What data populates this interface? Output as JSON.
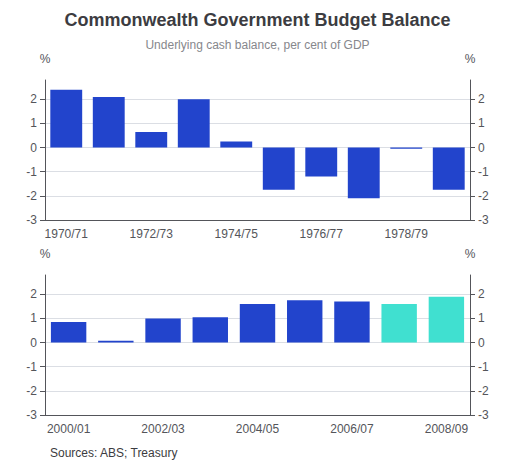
{
  "chart_data": [
    {
      "type": "bar",
      "title": "Commonwealth Government Budget Balance",
      "subtitle": "Underlying cash balance, per cent of GDP",
      "categories": [
        "1970/71",
        null,
        "1972/73",
        null,
        "1974/75",
        null,
        "1976/77",
        null,
        "1978/79",
        null
      ],
      "values": [
        2.4,
        2.1,
        0.65,
        2.0,
        0.25,
        -1.75,
        -1.2,
        -2.1,
        -0.05,
        -1.75
      ],
      "color": "#2244CC",
      "ylim": [
        -3,
        2.8
      ],
      "yticks": [
        -3,
        -2,
        -1,
        0,
        1,
        2
      ],
      "y2lim": [
        -3,
        2.8
      ],
      "y2ticks": [
        -3,
        -2,
        -1,
        0,
        1,
        2
      ],
      "ylabel": "%",
      "y2label": "%",
      "grid": true
    },
    {
      "type": "bar",
      "categories": [
        "2000/01",
        null,
        "2002/03",
        null,
        "2004/05",
        null,
        "2006/07",
        null,
        "2008/09"
      ],
      "values": [
        0.85,
        0.08,
        1.0,
        1.05,
        1.6,
        1.75,
        1.7,
        1.6,
        1.9
      ],
      "colors": [
        "#2244CC",
        "#2244CC",
        "#2244CC",
        "#2244CC",
        "#2244CC",
        "#2244CC",
        "#2244CC",
        "#40E0D0",
        "#40E0D0"
      ],
      "ylim": [
        -3,
        2.8
      ],
      "yticks": [
        -3,
        -2,
        -1,
        0,
        1,
        2
      ],
      "y2lim": [
        -3,
        2.8
      ],
      "y2ticks": [
        -3,
        -2,
        -1,
        0,
        1,
        2
      ],
      "ylabel": "%",
      "y2label": "%",
      "grid": true,
      "source": "Sources: ABS; Treasury"
    }
  ]
}
